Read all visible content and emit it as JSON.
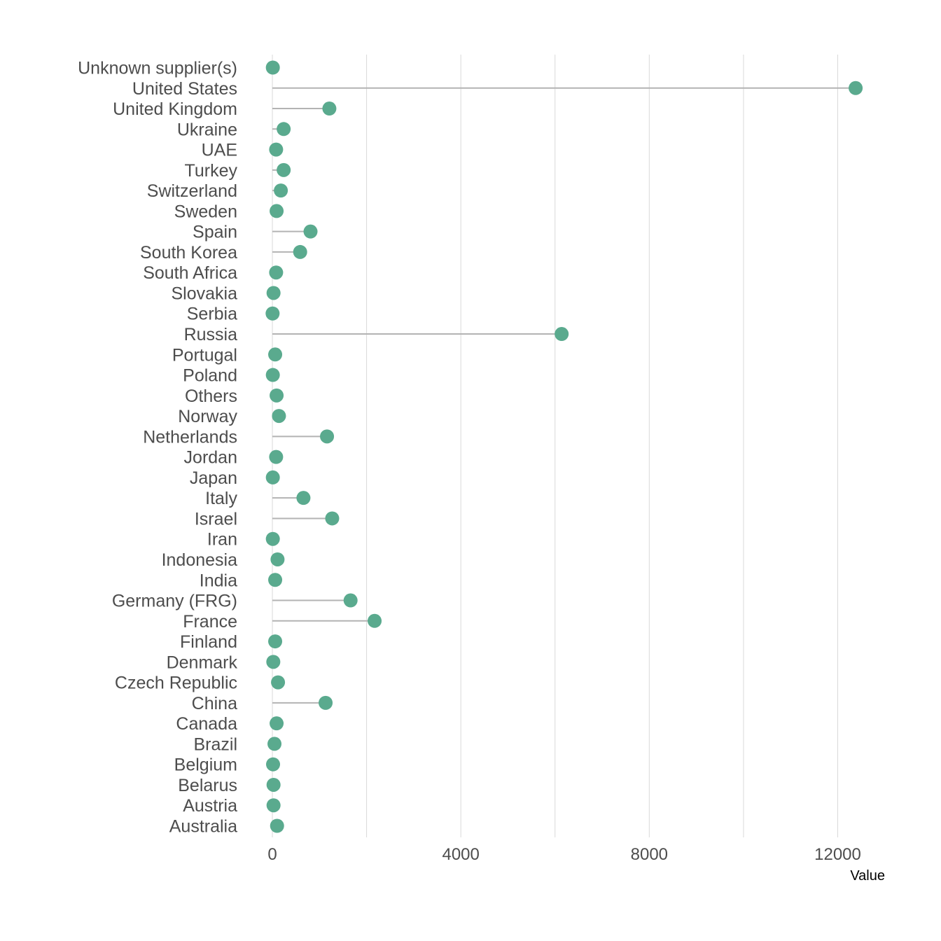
{
  "chart_data": {
    "type": "lollipop",
    "orientation": "horizontal",
    "title": "",
    "xlabel": "Value",
    "ylabel": "",
    "xlim": [
      0,
      12400
    ],
    "x_ticks": [
      0,
      4000,
      8000,
      12000
    ],
    "x_tick_labels": [
      "0",
      "4000",
      "8000",
      "12000"
    ],
    "grid": "vertical",
    "colors": {
      "point": "#5aaa8e",
      "stem": "#b3b3b3",
      "grid": "#d9d9d9",
      "label": "#4d4d4d"
    },
    "categories": [
      "Unknown supplier(s)",
      "United States",
      "United Kingdom",
      "Ukraine",
      "UAE",
      "Turkey",
      "Switzerland",
      "Sweden",
      "Spain",
      "South Korea",
      "South Africa",
      "Slovakia",
      "Serbia",
      "Russia",
      "Portugal",
      "Poland",
      "Others",
      "Norway",
      "Netherlands",
      "Jordan",
      "Japan",
      "Italy",
      "Israel",
      "Iran",
      "Indonesia",
      "India",
      "Germany (FRG)",
      "France",
      "Finland",
      "Denmark",
      "Czech Republic",
      "China",
      "Canada",
      "Brazil",
      "Belgium",
      "Belarus",
      "Austria",
      "Australia"
    ],
    "values": [
      10,
      12380,
      1210,
      240,
      80,
      240,
      180,
      90,
      810,
      590,
      80,
      25,
      5,
      6140,
      60,
      10,
      90,
      140,
      1160,
      80,
      10,
      660,
      1270,
      10,
      110,
      60,
      1660,
      2170,
      60,
      20,
      120,
      1130,
      90,
      45,
      15,
      25,
      25,
      100
    ]
  }
}
